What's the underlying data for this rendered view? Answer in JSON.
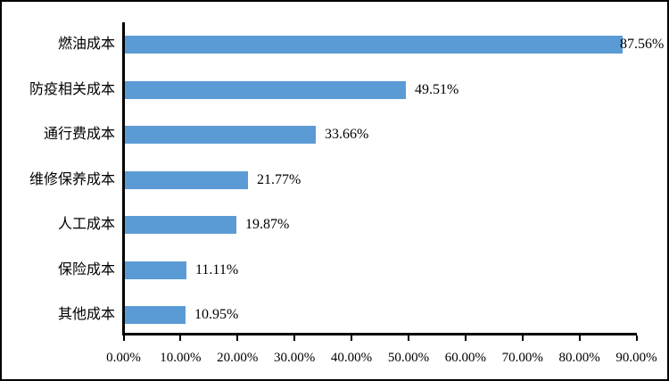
{
  "figure": {
    "background_color": "#ffffff",
    "border_color": "#000000"
  },
  "chart_data": {
    "type": "bar",
    "orientation": "horizontal",
    "title": "",
    "xlabel": "",
    "ylabel": "",
    "grid": false,
    "legend": "none",
    "categories": [
      "燃油成本",
      "防疫相关成本",
      "通行费成本",
      "维修保养成本",
      "人工成本",
      "保险成本",
      "其他成本"
    ],
    "values": [
      87.56,
      49.51,
      33.66,
      21.77,
      19.87,
      11.11,
      10.95
    ],
    "value_labels": [
      "87.56%",
      "49.51%",
      "33.66%",
      "21.77%",
      "19.87%",
      "11.11%",
      "10.95%"
    ],
    "xlim": [
      0,
      90
    ],
    "x_tick_values": [
      0,
      10,
      20,
      30,
      40,
      50,
      60,
      70,
      80,
      90
    ],
    "x_tick_labels": [
      "0.00%",
      "10.00%",
      "20.00%",
      "30.00%",
      "40.00%",
      "50.00%",
      "60.00%",
      "70.00%",
      "80.00%",
      "90.00%"
    ],
    "bar_color": "#5B9BD5",
    "axis_color": "#000000",
    "label_color": "#000000"
  }
}
